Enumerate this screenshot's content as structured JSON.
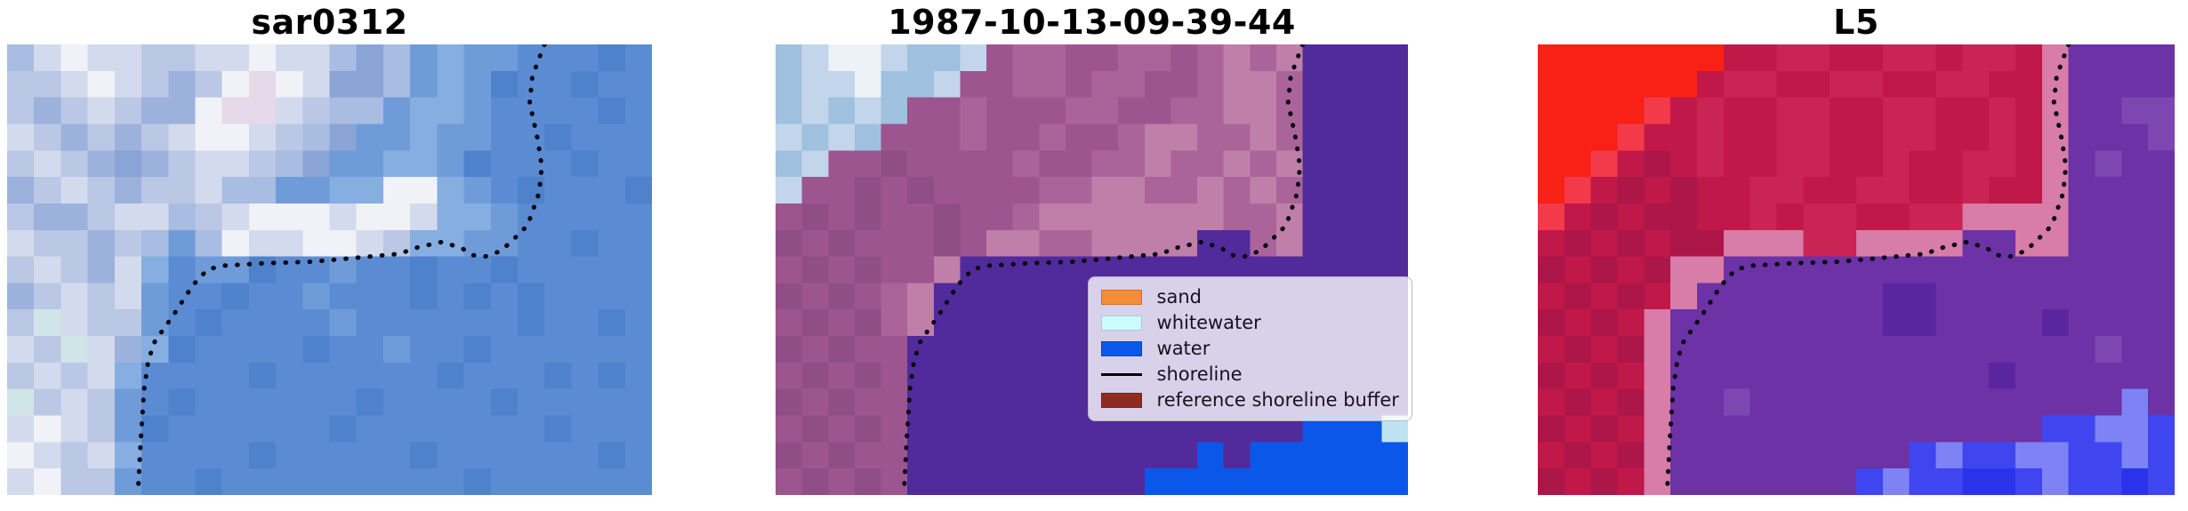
{
  "figure": {
    "background": "#ffffff",
    "panels": [
      {
        "id": "sar0312",
        "title": "sar0312",
        "image_kind": "SAR satellite image (pixelated blue/white)",
        "palette": {
          "a": "#5b8cd3",
          "b": "#4e82cb",
          "c": "#6f9cd9",
          "d": "#86aee0",
          "e": "#9db1dd",
          "f": "#bac7e5",
          "g": "#d3daed",
          "h": "#f0f2f7",
          "i": "#e6d9e9",
          "j": "#cfe5e8",
          "k": "#8aa4d6",
          "m": "#a9bce1"
        },
        "grid": [
          "mghggffgghggmkmcdccaaaba",
          "ffghgfefhihgkkmcdcbaabaa",
          "fefgfeehiigfmmcddcaaaaba",
          "gfefefghhgfmkccdccaabaaa",
          "fgfekefggfmkccddcbaaabaa",
          "efgfeffgmmccddhhdcabaaab",
          "feefggmfghhhghhgddcaaaaa",
          "gffefmcmhgghhgfddccaabaa",
          "fgfegdaccbaacaabaabaaaaa",
          "efgfgcaabaacaaabababaaaa",
          "fjgffcabaaaacaaaaaabaaba",
          "gfjgedbaaaabaacaabaaaaaa",
          "fgfgdaaaabaaaaaabaaababa",
          "jfgfcabaaaaaabaaaabaaaaa",
          "ghgfcbaaaaaabaaaaaaabaaa",
          "hgfgdaaaabaaaaabaaaaaaba",
          "ghffcaabaaaaaaaaabaaaaaa"
        ],
        "shoreline": {
          "color": "#0a0a14",
          "style": "dotted",
          "points": [
            [
              20.0,
              0
            ],
            [
              19.55,
              1.2
            ],
            [
              19.45,
              2.2
            ],
            [
              19.75,
              3.6
            ],
            [
              19.9,
              4.6
            ],
            [
              19.8,
              5.6
            ],
            [
              19.45,
              6.6
            ],
            [
              19.3,
              6.9
            ],
            [
              18.7,
              7.5
            ],
            [
              18.35,
              7.8
            ],
            [
              17.8,
              8.0
            ],
            [
              17.3,
              7.95
            ],
            [
              16.95,
              7.7
            ],
            [
              16.2,
              7.45
            ],
            [
              15.3,
              7.65
            ],
            [
              14.6,
              7.9
            ],
            [
              13.0,
              8.05
            ],
            [
              11.3,
              8.2
            ],
            [
              9.7,
              8.25
            ],
            [
              8.0,
              8.35
            ],
            [
              7.45,
              8.5
            ],
            [
              6.9,
              9.1
            ],
            [
              6.2,
              10.2
            ],
            [
              5.5,
              11.2
            ],
            [
              5.26,
              11.9
            ],
            [
              5.1,
              13.0
            ],
            [
              4.97,
              15.0
            ],
            [
              4.87,
              16.95
            ]
          ]
        }
      },
      {
        "id": "1987-10-13-09-39-44",
        "title": "1987-10-13-09-39-44",
        "image_kind": "classified image: mauve land, purple reference buffer, blue water, whitewater corner",
        "palette": {
          "p": "#9d5590",
          "q": "#ab649a",
          "r": "#bf7fa9",
          "s": "#8f4e86",
          "u": "#512b9c",
          "w": "#0b57ea",
          "n": "#bfe2f2",
          "x": "#9fc0df",
          "y": "#edf2f7",
          "z": "#c3d5ea"
        },
        "grid": [
          "xzyyzxxzpqqppqqpqrqruuuu",
          "xzzyxxzppqqpqqppqrrquuuu",
          "xzxzxppqpppqqppqqrrquuuu",
          "zxzxpppqppqppqrrqqrquuuu",
          "xzppsppppqppqqrqqrqruuuu",
          "zppspsppppqqrrqqrqrquuuu",
          "pspsppsppqrrrrrrrqqruuuu",
          "spspppsprrqqrrrruuqruuuu",
          "pspsppruuuuuuuuuuuuuuuuu",
          "spspqruuuuuuuuuuuuuuuuuu",
          "pspsqruuuuuuuuuuuuuuuuuu",
          "spsppuuuuuuuuuuuuuuuuuuu",
          "pspspuuuuuuuuuuuuuuuuuuu",
          "spsppuuuuuuuuuuuuuuuuuuu",
          "pspspuuuuuuuuuuuuuuuwwwn",
          "spsppuuuuuuuuuuuwuwwwwww",
          "pspspuuuuuuuuuwwwwwwwwww"
        ],
        "shoreline": {
          "color": "#0a0a14",
          "style": "dotted",
          "points": [
            [
              20.0,
              0
            ],
            [
              19.55,
              1.2
            ],
            [
              19.45,
              2.2
            ],
            [
              19.75,
              3.6
            ],
            [
              19.9,
              4.6
            ],
            [
              19.8,
              5.6
            ],
            [
              19.45,
              6.6
            ],
            [
              19.3,
              6.9
            ],
            [
              18.7,
              7.5
            ],
            [
              18.35,
              7.8
            ],
            [
              17.8,
              8.0
            ],
            [
              17.3,
              7.95
            ],
            [
              16.95,
              7.7
            ],
            [
              16.2,
              7.45
            ],
            [
              15.3,
              7.65
            ],
            [
              14.6,
              7.9
            ],
            [
              13.0,
              8.05
            ],
            [
              11.3,
              8.2
            ],
            [
              9.7,
              8.25
            ],
            [
              8.0,
              8.35
            ],
            [
              7.45,
              8.5
            ],
            [
              6.9,
              9.1
            ],
            [
              6.2,
              10.2
            ],
            [
              5.5,
              11.2
            ],
            [
              5.26,
              11.9
            ],
            [
              5.1,
              13.0
            ],
            [
              4.97,
              15.0
            ],
            [
              4.87,
              16.95
            ]
          ]
        },
        "legend": {
          "background": "#ddd6e8",
          "items": [
            {
              "label": "sand",
              "type": "patch",
              "color": "#f78c36"
            },
            {
              "label": "whitewater",
              "type": "patch",
              "color": "#ccfbff"
            },
            {
              "label": "water",
              "type": "patch",
              "color": "#0a58e8"
            },
            {
              "label": "shoreline",
              "type": "line",
              "color": "#000000"
            },
            {
              "label": "reference shoreline buffer",
              "type": "patch",
              "color": "#8e2c22"
            }
          ]
        }
      },
      {
        "id": "L5",
        "title": "L5",
        "image_kind": "false-colour Landsat 5 image: crimson land, purple water, blue corner",
        "palette": {
          "A": "#c01848",
          "B": "#ca2454",
          "C": "#ad1648",
          "D": "#f92015",
          "E": "#f23a4a",
          "F": "#d87ca8",
          "G": "#6c32a6",
          "H": "#5a26a0",
          "I": "#7d47b2",
          "J": "#3f46ef",
          "K": "#7e82f4",
          "L": "#2b33ea"
        },
        "grid": [
          "DDDDDDDAABBAABBABBAFGGGG",
          "DDDDDDABBAABBAABBAAFGGGG",
          "DDDDEABAABBAABBAABAFGGII",
          "DDDEAABAABBAABBAABAFGGGI",
          "DDEACABAABBAABAABBAFGIGG",
          "DEACACAABBAABBAABAAFGGGG",
          "EACACCAABABBAABBFFFFGGGG",
          "ACACACCFFFBBFFFFGGFFGGGG",
          "CACACFFGGGGGGGGGGGGGGGGG",
          "ACACAFGGGGGGGHHGGGGGGGGG",
          "CACAFGGGGGGGGHHGGGGHGGGG",
          "ACACFGGGGGGGGGGGGGGGGIGG",
          "CACAFGGGGGGGGGGGGHGGGGGG",
          "ACACFGGIGGGGGGGGGGGGGGKG",
          "CACAFGGGGGGGGGGGGGGJJKKJ",
          "ACACFGGGGGGGGGJKJJKKJJKJ",
          "CACAFGGGGGGGJKJJLLJKJJLJ"
        ],
        "shoreline": {
          "color": "#0a0a14",
          "style": "dotted",
          "points": [
            [
              20.0,
              0
            ],
            [
              19.55,
              1.2
            ],
            [
              19.45,
              2.2
            ],
            [
              19.75,
              3.6
            ],
            [
              19.9,
              4.6
            ],
            [
              19.8,
              5.6
            ],
            [
              19.45,
              6.6
            ],
            [
              19.3,
              6.9
            ],
            [
              18.7,
              7.5
            ],
            [
              18.35,
              7.8
            ],
            [
              17.8,
              8.0
            ],
            [
              17.3,
              7.95
            ],
            [
              16.95,
              7.7
            ],
            [
              16.2,
              7.45
            ],
            [
              15.3,
              7.65
            ],
            [
              14.6,
              7.9
            ],
            [
              13.0,
              8.05
            ],
            [
              11.3,
              8.2
            ],
            [
              9.7,
              8.25
            ],
            [
              8.0,
              8.35
            ],
            [
              7.45,
              8.5
            ],
            [
              6.9,
              9.1
            ],
            [
              6.2,
              10.2
            ],
            [
              5.5,
              11.2
            ],
            [
              5.26,
              11.9
            ],
            [
              5.1,
              13.0
            ],
            [
              4.97,
              15.0
            ],
            [
              4.87,
              16.95
            ]
          ]
        }
      }
    ]
  },
  "chart_data": [
    {
      "type": "heatmap",
      "title": "sar0312",
      "content": "pixelated SAR satellite image: pale blue-white land in upper-left, cornflower-blue water on right and bottom, bright white band above the shoreline",
      "annotations": [
        "dotted black detected shoreline"
      ],
      "grid": "off",
      "axes": "off"
    },
    {
      "type": "heatmap",
      "title": "1987-10-13-09-39-44",
      "content": "classified scene: mauve land, dark-purple reference shoreline buffer covering the water side, bright blue water class in bottom-right corner, pale blue-white whitewater/cloud in top-left corner",
      "annotations": [
        "dotted black detected shoreline"
      ],
      "grid": "off",
      "axes": "off",
      "legend": {
        "position": "center-right",
        "entries": [
          {
            "label": "sand",
            "color": "#f78c36"
          },
          {
            "label": "whitewater",
            "color": "#ccfbff"
          },
          {
            "label": "water",
            "color": "#0a58e8"
          },
          {
            "label": "shoreline",
            "color": "#000000"
          },
          {
            "label": "reference shoreline buffer",
            "color": "#8e2c22"
          }
        ]
      }
    },
    {
      "type": "heatmap",
      "title": "L5",
      "content": "false-colour Landsat 5 image: crimson land with bright red top-left corner, pale pink fringe along the coast, purple water, royal-blue water patch in bottom-right corner",
      "annotations": [
        "dotted black detected shoreline"
      ],
      "grid": "off",
      "axes": "off"
    }
  ]
}
